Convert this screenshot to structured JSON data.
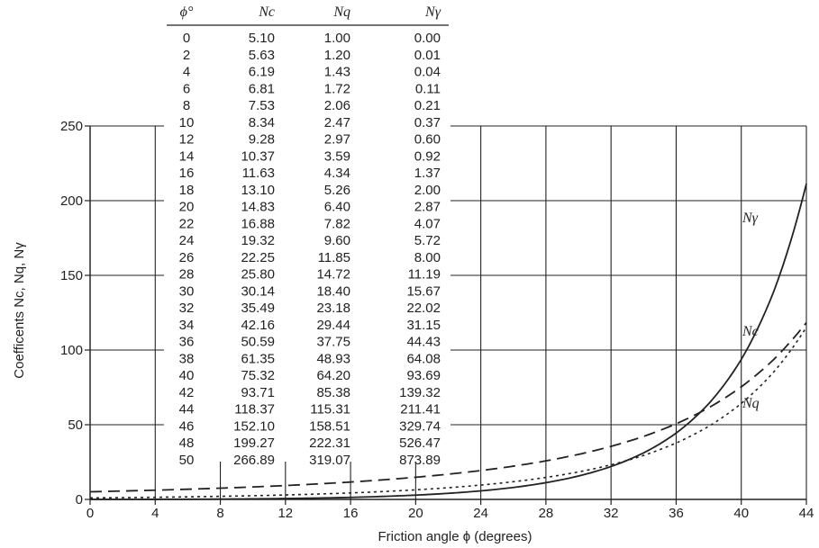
{
  "chart_data": {
    "type": "line",
    "xlabel": "Friction angle ϕ (degrees)",
    "ylabel": "Coefficents Nc, Nq, Nγ",
    "xlim": [
      0,
      44
    ],
    "ylim": [
      0,
      250
    ],
    "x_ticks": [
      0,
      4,
      8,
      12,
      16,
      20,
      24,
      28,
      32,
      36,
      40,
      44
    ],
    "y_ticks": [
      0,
      50,
      100,
      150,
      200,
      250
    ],
    "grid": true,
    "series": [
      {
        "name": "Nγ",
        "style": "solid",
        "x": [
          0,
          2,
          4,
          6,
          8,
          10,
          12,
          14,
          16,
          18,
          20,
          22,
          24,
          26,
          28,
          30,
          32,
          34,
          36,
          38,
          40,
          42,
          44
        ],
        "values": [
          0.0,
          0.01,
          0.04,
          0.11,
          0.21,
          0.37,
          0.6,
          0.92,
          1.37,
          2.0,
          2.87,
          4.07,
          5.72,
          8.0,
          11.19,
          15.67,
          22.02,
          31.15,
          44.43,
          64.08,
          93.69,
          139.32,
          211.41
        ]
      },
      {
        "name": "Nc",
        "style": "dashed",
        "x": [
          0,
          2,
          4,
          6,
          8,
          10,
          12,
          14,
          16,
          18,
          20,
          22,
          24,
          26,
          28,
          30,
          32,
          34,
          36,
          38,
          40,
          42,
          44
        ],
        "values": [
          5.1,
          5.63,
          6.19,
          6.81,
          7.53,
          8.34,
          9.28,
          10.37,
          11.63,
          13.1,
          14.83,
          16.88,
          19.32,
          22.25,
          25.8,
          30.14,
          35.49,
          42.16,
          50.59,
          61.35,
          75.32,
          93.71,
          118.37
        ]
      },
      {
        "name": "Nq",
        "style": "dotted",
        "x": [
          0,
          2,
          4,
          6,
          8,
          10,
          12,
          14,
          16,
          18,
          20,
          22,
          24,
          26,
          28,
          30,
          32,
          34,
          36,
          38,
          40,
          42,
          44
        ],
        "values": [
          1.0,
          1.2,
          1.43,
          1.72,
          2.06,
          2.47,
          2.97,
          3.59,
          4.34,
          5.26,
          6.4,
          7.82,
          9.6,
          11.85,
          14.72,
          18.4,
          23.18,
          29.44,
          37.75,
          48.93,
          64.2,
          85.38,
          115.31
        ]
      }
    ],
    "table": {
      "headers": [
        "ϕ°",
        "Nc",
        "Nq",
        "Nγ"
      ],
      "rows": [
        [
          "0",
          "5.10",
          "1.00",
          "0.00"
        ],
        [
          "2",
          "5.63",
          "1.20",
          "0.01"
        ],
        [
          "4",
          "6.19",
          "1.43",
          "0.04"
        ],
        [
          "6",
          "6.81",
          "1.72",
          "0.11"
        ],
        [
          "8",
          "7.53",
          "2.06",
          "0.21"
        ],
        [
          "10",
          "8.34",
          "2.47",
          "0.37"
        ],
        [
          "12",
          "9.28",
          "2.97",
          "0.60"
        ],
        [
          "14",
          "10.37",
          "3.59",
          "0.92"
        ],
        [
          "16",
          "11.63",
          "4.34",
          "1.37"
        ],
        [
          "18",
          "13.10",
          "5.26",
          "2.00"
        ],
        [
          "20",
          "14.83",
          "6.40",
          "2.87"
        ],
        [
          "22",
          "16.88",
          "7.82",
          "4.07"
        ],
        [
          "24",
          "19.32",
          "9.60",
          "5.72"
        ],
        [
          "26",
          "22.25",
          "11.85",
          "8.00"
        ],
        [
          "28",
          "25.80",
          "14.72",
          "11.19"
        ],
        [
          "30",
          "30.14",
          "18.40",
          "15.67"
        ],
        [
          "32",
          "35.49",
          "23.18",
          "22.02"
        ],
        [
          "34",
          "42.16",
          "29.44",
          "31.15"
        ],
        [
          "36",
          "50.59",
          "37.75",
          "44.43"
        ],
        [
          "38",
          "61.35",
          "48.93",
          "64.08"
        ],
        [
          "40",
          "75.32",
          "64.20",
          "93.69"
        ],
        [
          "42",
          "93.71",
          "85.38",
          "139.32"
        ],
        [
          "44",
          "118.37",
          "115.31",
          "211.41"
        ],
        [
          "46",
          "152.10",
          "158.51",
          "329.74"
        ],
        [
          "48",
          "199.27",
          "222.31",
          "526.47"
        ],
        [
          "50",
          "266.89",
          "319.07",
          "873.89"
        ]
      ]
    }
  }
}
